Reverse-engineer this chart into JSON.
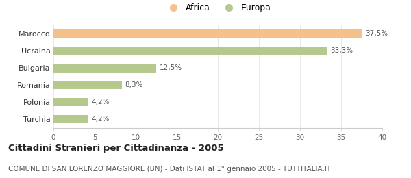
{
  "categories": [
    "Turchia",
    "Polonia",
    "Romania",
    "Bulgaria",
    "Ucraina",
    "Marocco"
  ],
  "values": [
    4.2,
    4.2,
    8.3,
    12.5,
    33.3,
    37.5
  ],
  "labels": [
    "4,2%",
    "4,2%",
    "8,3%",
    "12,5%",
    "33,3%",
    "37,5%"
  ],
  "colors": [
    "#b5c98e",
    "#b5c98e",
    "#b5c98e",
    "#b5c98e",
    "#b5c98e",
    "#f5c08a"
  ],
  "legend_items": [
    {
      "label": "Africa",
      "color": "#f5c08a"
    },
    {
      "label": "Europa",
      "color": "#b5c98e"
    }
  ],
  "xlim": [
    0,
    40
  ],
  "xticks": [
    0,
    5,
    10,
    15,
    20,
    25,
    30,
    35,
    40
  ],
  "title": "Cittadini Stranieri per Cittadinanza - 2005",
  "subtitle": "COMUNE DI SAN LORENZO MAGGIORE (BN) - Dati ISTAT al 1° gennaio 2005 - TUTTITALIA.IT",
  "background_color": "#ffffff",
  "bar_edge_color": "none",
  "title_fontsize": 9.5,
  "subtitle_fontsize": 7.5,
  "label_fontsize": 7.5,
  "ytick_fontsize": 8,
  "xtick_fontsize": 7.5
}
